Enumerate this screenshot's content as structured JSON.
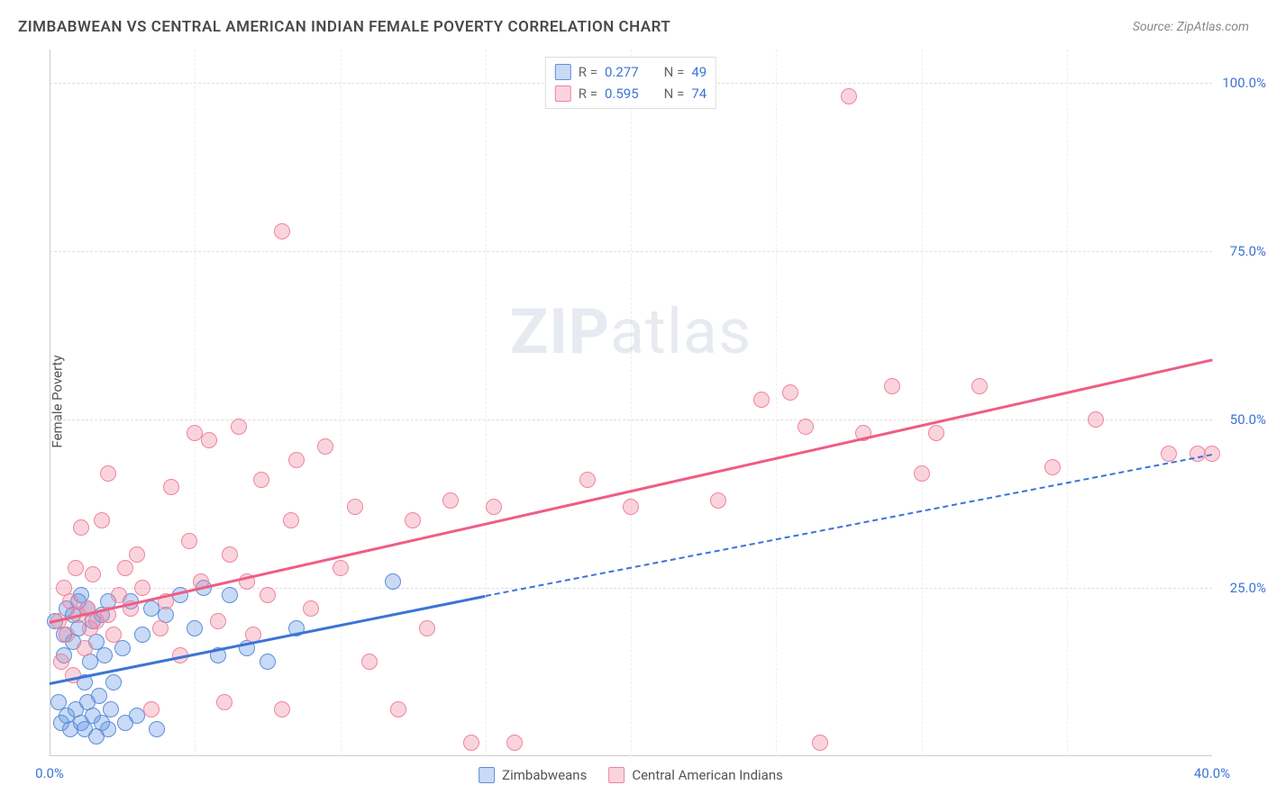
{
  "title": "ZIMBABWEAN VS CENTRAL AMERICAN INDIAN FEMALE POVERTY CORRELATION CHART",
  "source": "Source: ZipAtlas.com",
  "ylabel": "Female Poverty",
  "watermark_zip": "ZIP",
  "watermark_atlas": "atlas",
  "chart": {
    "type": "scatter",
    "xlim": [
      0,
      40
    ],
    "ylim": [
      0,
      105
    ],
    "xticks": [
      {
        "v": 0,
        "label": "0.0%"
      },
      {
        "v": 40,
        "label": "40.0%"
      }
    ],
    "yticks": [
      {
        "v": 25,
        "label": "25.0%"
      },
      {
        "v": 50,
        "label": "50.0%"
      },
      {
        "v": 75,
        "label": "75.0%"
      },
      {
        "v": 100,
        "label": "100.0%"
      }
    ],
    "xgrid": [
      5,
      10,
      15,
      20,
      25,
      30,
      35
    ],
    "background_color": "#ffffff",
    "grid_color": "#dddddd",
    "marker_radius": 9,
    "marker_opacity": 0.55,
    "series": [
      {
        "key": "zimbabweans",
        "name": "Zimbabweans",
        "color_fill": "rgba(96,150,230,0.35)",
        "color_stroke": "#5e8fd6",
        "R": "0.277",
        "N": "49",
        "regression": {
          "solid_from": [
            0,
            11
          ],
          "solid_to": [
            15,
            24
          ],
          "dashed_to": [
            40,
            45
          ],
          "color": "#3b74d6"
        },
        "points": [
          [
            0.2,
            20
          ],
          [
            0.3,
            8
          ],
          [
            0.4,
            5
          ],
          [
            0.5,
            15
          ],
          [
            0.5,
            18
          ],
          [
            0.6,
            22
          ],
          [
            0.6,
            6
          ],
          [
            0.7,
            4
          ],
          [
            0.8,
            17
          ],
          [
            0.8,
            21
          ],
          [
            0.9,
            7
          ],
          [
            1.0,
            19
          ],
          [
            1.0,
            23
          ],
          [
            1.1,
            5
          ],
          [
            1.1,
            24
          ],
          [
            1.2,
            11
          ],
          [
            1.2,
            4
          ],
          [
            1.3,
            8
          ],
          [
            1.3,
            22
          ],
          [
            1.4,
            14
          ],
          [
            1.5,
            6
          ],
          [
            1.5,
            20
          ],
          [
            1.6,
            3
          ],
          [
            1.6,
            17
          ],
          [
            1.7,
            9
          ],
          [
            1.8,
            21
          ],
          [
            1.8,
            5
          ],
          [
            2.0,
            23
          ],
          [
            2.0,
            4
          ],
          [
            2.1,
            7
          ],
          [
            2.2,
            11
          ],
          [
            2.5,
            16
          ],
          [
            2.6,
            5
          ],
          [
            2.8,
            23
          ],
          [
            3.0,
            6
          ],
          [
            3.2,
            18
          ],
          [
            3.5,
            22
          ],
          [
            3.7,
            4
          ],
          [
            4.0,
            21
          ],
          [
            4.5,
            24
          ],
          [
            5.0,
            19
          ],
          [
            5.3,
            25
          ],
          [
            5.8,
            15
          ],
          [
            6.2,
            24
          ],
          [
            6.8,
            16
          ],
          [
            7.5,
            14
          ],
          [
            8.5,
            19
          ],
          [
            11.8,
            26
          ],
          [
            1.9,
            15
          ]
        ]
      },
      {
        "key": "cai",
        "name": "Central American Indians",
        "color_fill": "rgba(242,132,158,0.35)",
        "color_stroke": "#ef849f",
        "R": "0.595",
        "N": "74",
        "regression": {
          "solid_from": [
            0,
            20
          ],
          "solid_to": [
            40,
            59
          ],
          "color": "#ef5d84"
        },
        "points": [
          [
            0.3,
            20
          ],
          [
            0.4,
            14
          ],
          [
            0.5,
            25
          ],
          [
            0.6,
            18
          ],
          [
            0.7,
            23
          ],
          [
            0.8,
            12
          ],
          [
            0.9,
            28
          ],
          [
            1.0,
            21
          ],
          [
            1.1,
            34
          ],
          [
            1.2,
            16
          ],
          [
            1.3,
            22
          ],
          [
            1.4,
            19
          ],
          [
            1.5,
            27
          ],
          [
            1.6,
            20
          ],
          [
            1.8,
            35
          ],
          [
            2.0,
            42
          ],
          [
            2.0,
            21
          ],
          [
            2.2,
            18
          ],
          [
            2.4,
            24
          ],
          [
            2.6,
            28
          ],
          [
            2.8,
            22
          ],
          [
            3.0,
            30
          ],
          [
            3.2,
            25
          ],
          [
            3.5,
            7
          ],
          [
            3.8,
            19
          ],
          [
            4.0,
            23
          ],
          [
            4.2,
            40
          ],
          [
            4.5,
            15
          ],
          [
            4.8,
            32
          ],
          [
            5.0,
            48
          ],
          [
            5.2,
            26
          ],
          [
            5.5,
            47
          ],
          [
            5.8,
            20
          ],
          [
            6.0,
            8
          ],
          [
            6.2,
            30
          ],
          [
            6.5,
            49
          ],
          [
            6.8,
            26
          ],
          [
            7.0,
            18
          ],
          [
            7.3,
            41
          ],
          [
            7.5,
            24
          ],
          [
            8.0,
            78
          ],
          [
            8.0,
            7
          ],
          [
            8.3,
            35
          ],
          [
            8.5,
            44
          ],
          [
            9.0,
            22
          ],
          [
            9.5,
            46
          ],
          [
            10.0,
            28
          ],
          [
            10.5,
            37
          ],
          [
            11.0,
            14
          ],
          [
            12.0,
            7
          ],
          [
            12.5,
            35
          ],
          [
            13.0,
            19
          ],
          [
            13.8,
            38
          ],
          [
            14.5,
            2
          ],
          [
            15.3,
            37
          ],
          [
            16.0,
            2
          ],
          [
            18.5,
            41
          ],
          [
            20.0,
            37
          ],
          [
            23.0,
            38
          ],
          [
            24.5,
            53
          ],
          [
            25.5,
            54
          ],
          [
            26.0,
            49
          ],
          [
            26.5,
            2
          ],
          [
            27.5,
            98
          ],
          [
            28.0,
            48
          ],
          [
            29.0,
            55
          ],
          [
            30.0,
            42
          ],
          [
            30.5,
            48
          ],
          [
            32.0,
            55
          ],
          [
            34.5,
            43
          ],
          [
            36.0,
            50
          ],
          [
            38.5,
            45
          ],
          [
            39.5,
            45
          ],
          [
            40.0,
            45
          ]
        ]
      }
    ]
  },
  "legend_top": {
    "r_label": "R =",
    "n_label": "N ="
  },
  "colors": {
    "title": "#4a4a4a",
    "tick": "#3b74d6",
    "stat_value": "#3b74d6",
    "stat_label": "#666"
  }
}
